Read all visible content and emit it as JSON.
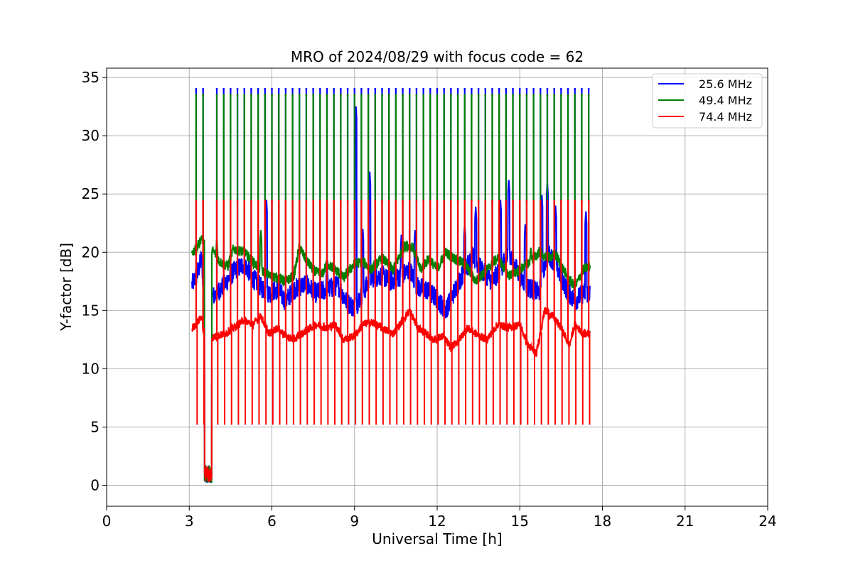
{
  "chart_data": {
    "type": "line",
    "title": "MRO of 2024/08/29 with focus code = 62",
    "xlabel": "Universal Time [h]",
    "ylabel": "Y-factor [dB]",
    "xlim": [
      0,
      24
    ],
    "ylim": [
      -1.8,
      35.8
    ],
    "xticks": [
      0,
      3,
      6,
      9,
      12,
      15,
      18,
      21,
      24
    ],
    "yticks": [
      0,
      5,
      10,
      15,
      20,
      25,
      30,
      35
    ],
    "grid": true,
    "legend_position": "top-right",
    "spike_times": [
      3.25,
      3.5,
      4.0,
      4.25,
      4.5,
      4.75,
      5.0,
      5.25,
      5.5,
      5.75,
      6.0,
      6.25,
      6.5,
      6.75,
      7.0,
      7.25,
      7.5,
      7.75,
      8.0,
      8.25,
      8.5,
      8.75,
      9.0,
      9.25,
      9.5,
      9.75,
      10.0,
      10.25,
      10.5,
      10.75,
      11.0,
      11.25,
      11.5,
      11.75,
      12.0,
      12.25,
      12.5,
      12.75,
      13.0,
      13.25,
      13.5,
      13.75,
      14.0,
      14.25,
      14.5,
      14.75,
      15.0,
      15.25,
      15.5,
      15.75,
      16.0,
      16.25,
      16.5,
      16.75,
      17.0,
      17.25,
      17.5
    ],
    "dropout": {
      "x_start": 3.55,
      "x_end": 3.82,
      "y": 0.2
    },
    "series": [
      {
        "name": "25.6 MHz",
        "color": "#0000ff",
        "spike_peak": 34.0,
        "baseline": [
          [
            3.1,
            17.2
          ],
          [
            3.3,
            18.2
          ],
          [
            3.45,
            19.5
          ],
          [
            3.55,
            15.5
          ],
          [
            4.0,
            16.5
          ],
          [
            4.3,
            17.3
          ],
          [
            4.6,
            18.3
          ],
          [
            5.0,
            19.0
          ],
          [
            5.3,
            17.8
          ],
          [
            5.6,
            17.0
          ],
          [
            5.9,
            16.5
          ],
          [
            6.2,
            16.8
          ],
          [
            6.5,
            15.8
          ],
          [
            6.8,
            16.8
          ],
          [
            7.2,
            17.3
          ],
          [
            7.6,
            16.5
          ],
          [
            8.0,
            16.8
          ],
          [
            8.4,
            17.2
          ],
          [
            8.7,
            15.8
          ],
          [
            9.0,
            15.2
          ],
          [
            9.3,
            16.5
          ],
          [
            9.6,
            17.8
          ],
          [
            10.0,
            18.0
          ],
          [
            10.3,
            17.5
          ],
          [
            10.7,
            18.0
          ],
          [
            11.0,
            18.5
          ],
          [
            11.3,
            17.0
          ],
          [
            11.6,
            16.8
          ],
          [
            12.0,
            16.0
          ],
          [
            12.3,
            15.0
          ],
          [
            12.6,
            16.5
          ],
          [
            13.0,
            18.5
          ],
          [
            13.3,
            19.5
          ],
          [
            13.6,
            18.5
          ],
          [
            14.0,
            17.5
          ],
          [
            14.3,
            18.5
          ],
          [
            14.6,
            19.8
          ],
          [
            15.0,
            18.0
          ],
          [
            15.3,
            17.0
          ],
          [
            15.7,
            16.5
          ],
          [
            16.0,
            20.0
          ],
          [
            16.3,
            19.0
          ],
          [
            16.7,
            16.8
          ],
          [
            17.0,
            15.8
          ],
          [
            17.3,
            16.5
          ],
          [
            17.55,
            16.5
          ]
        ],
        "peaks": [
          [
            3.55,
            19.8
          ],
          [
            5.8,
            24.6
          ],
          [
            8.0,
            19.0
          ],
          [
            9.05,
            32.6
          ],
          [
            9.3,
            22.0
          ],
          [
            9.55,
            27.0
          ],
          [
            10.7,
            21.5
          ],
          [
            11.2,
            22.0
          ],
          [
            13.0,
            22.5
          ],
          [
            13.4,
            24.0
          ],
          [
            14.3,
            24.5
          ],
          [
            14.6,
            26.3
          ],
          [
            15.2,
            22.5
          ],
          [
            15.8,
            25.0
          ],
          [
            16.0,
            26.0
          ],
          [
            16.3,
            24.0
          ],
          [
            17.4,
            23.6
          ]
        ]
      },
      {
        "name": "49.4 MHz",
        "color": "#008000",
        "spike_peak": 33.5,
        "baseline": [
          [
            3.1,
            19.8
          ],
          [
            3.3,
            20.5
          ],
          [
            3.45,
            21.3
          ],
          [
            3.6,
            20.5
          ],
          [
            3.9,
            20.0
          ],
          [
            4.1,
            19.2
          ],
          [
            4.4,
            18.8
          ],
          [
            4.6,
            20.3
          ],
          [
            5.0,
            20.0
          ],
          [
            5.3,
            19.2
          ],
          [
            5.6,
            18.5
          ],
          [
            5.9,
            18.0
          ],
          [
            6.2,
            17.8
          ],
          [
            6.5,
            17.5
          ],
          [
            6.8,
            18.0
          ],
          [
            7.0,
            20.5
          ],
          [
            7.2,
            19.5
          ],
          [
            7.5,
            18.5
          ],
          [
            7.8,
            18.0
          ],
          [
            8.0,
            19.0
          ],
          [
            8.3,
            18.5
          ],
          [
            8.6,
            17.8
          ],
          [
            9.0,
            19.0
          ],
          [
            9.3,
            19.2
          ],
          [
            9.6,
            18.5
          ],
          [
            10.0,
            19.5
          ],
          [
            10.4,
            18.5
          ],
          [
            10.8,
            20.5
          ],
          [
            11.1,
            20.5
          ],
          [
            11.4,
            18.5
          ],
          [
            11.7,
            19.5
          ],
          [
            12.0,
            18.5
          ],
          [
            12.3,
            20.0
          ],
          [
            12.6,
            19.5
          ],
          [
            13.0,
            19.0
          ],
          [
            13.4,
            17.5
          ],
          [
            13.8,
            18.5
          ],
          [
            14.2,
            19.5
          ],
          [
            14.6,
            18.0
          ],
          [
            15.0,
            18.5
          ],
          [
            15.3,
            19.0
          ],
          [
            15.7,
            20.0
          ],
          [
            16.0,
            19.5
          ],
          [
            16.3,
            19.8
          ],
          [
            16.7,
            18.0
          ],
          [
            17.0,
            17.0
          ],
          [
            17.3,
            18.5
          ],
          [
            17.55,
            18.8
          ]
        ],
        "peaks": [
          [
            4.0,
            21.2
          ],
          [
            5.6,
            22.0
          ],
          [
            10.9,
            21.0
          ],
          [
            15.4,
            20.5
          ]
        ]
      },
      {
        "name": "74.4 MHz",
        "color": "#ff0000",
        "spike_peak": 24.4,
        "spike_trough": 5.2,
        "baseline": [
          [
            3.1,
            13.4
          ],
          [
            3.3,
            14.0
          ],
          [
            3.45,
            14.5
          ],
          [
            3.55,
            12.5
          ],
          [
            4.0,
            12.8
          ],
          [
            4.3,
            13.0
          ],
          [
            4.6,
            13.5
          ],
          [
            5.0,
            14.2
          ],
          [
            5.3,
            13.8
          ],
          [
            5.6,
            14.5
          ],
          [
            5.9,
            13.0
          ],
          [
            6.2,
            13.5
          ],
          [
            6.5,
            12.8
          ],
          [
            6.8,
            12.5
          ],
          [
            7.2,
            13.2
          ],
          [
            7.6,
            13.8
          ],
          [
            8.0,
            13.5
          ],
          [
            8.3,
            13.8
          ],
          [
            8.6,
            12.5
          ],
          [
            9.0,
            12.8
          ],
          [
            9.3,
            13.8
          ],
          [
            9.6,
            14.0
          ],
          [
            10.0,
            13.5
          ],
          [
            10.4,
            13.0
          ],
          [
            10.7,
            14.0
          ],
          [
            11.0,
            15.0
          ],
          [
            11.3,
            13.5
          ],
          [
            11.6,
            13.0
          ],
          [
            11.9,
            12.5
          ],
          [
            12.2,
            12.8
          ],
          [
            12.5,
            11.8
          ],
          [
            12.8,
            12.5
          ],
          [
            13.1,
            13.5
          ],
          [
            13.4,
            13.0
          ],
          [
            13.8,
            12.5
          ],
          [
            14.2,
            13.8
          ],
          [
            14.6,
            13.5
          ],
          [
            15.0,
            13.8
          ],
          [
            15.3,
            12.0
          ],
          [
            15.6,
            11.3
          ],
          [
            15.9,
            15.0
          ],
          [
            16.2,
            14.5
          ],
          [
            16.5,
            13.5
          ],
          [
            16.8,
            12.0
          ],
          [
            17.0,
            13.8
          ],
          [
            17.3,
            13.0
          ],
          [
            17.55,
            13.0
          ]
        ],
        "peaks": [
          [
            5.6,
            14.8
          ],
          [
            11.0,
            15.3
          ],
          [
            15.9,
            15.2
          ]
        ]
      }
    ]
  }
}
